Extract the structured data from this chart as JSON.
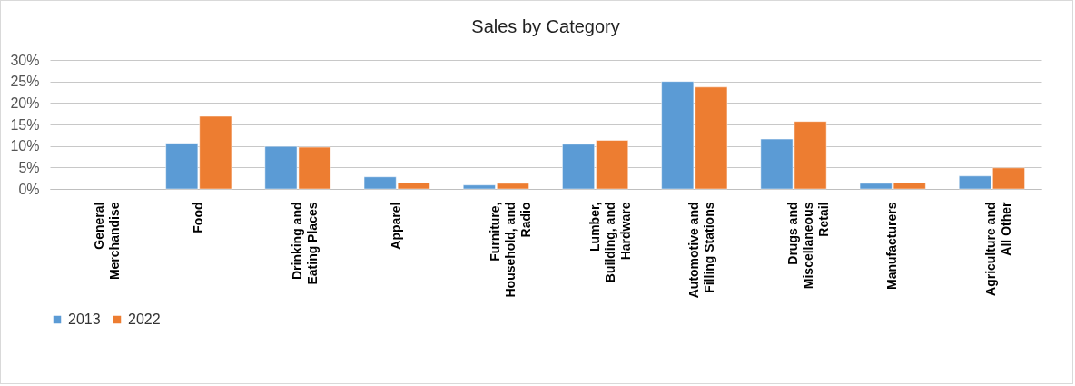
{
  "chart_data": {
    "type": "bar",
    "title": "Sales by Category",
    "categories": [
      "General Merchandise",
      "Food",
      "Drinking and Eating Places",
      "Apparel",
      "Furniture, Household, and Radio",
      "Lumber, Building, and Hardware",
      "Automotive and Filling Stations",
      "Drugs and Miscellaneous Retail",
      "Manufacturers",
      "Agriculture and All Other"
    ],
    "series": [
      {
        "name": "2013",
        "color": "#5b9bd5",
        "values": [
          null,
          10.6,
          9.9,
          2.8,
          0.9,
          10.4,
          25.0,
          11.6,
          1.3,
          3.0
        ]
      },
      {
        "name": "2022",
        "color": "#ed7d31",
        "values": [
          null,
          16.9,
          9.7,
          1.4,
          1.3,
          11.3,
          23.7,
          15.7,
          1.4,
          4.9
        ]
      }
    ],
    "ylim": [
      0,
      30
    ],
    "yticks": [
      {
        "value": 0,
        "label": "0%"
      },
      {
        "value": 5,
        "label": "5%"
      },
      {
        "value": 10,
        "label": "10%"
      },
      {
        "value": 15,
        "label": "15%"
      },
      {
        "value": 20,
        "label": "20%"
      },
      {
        "value": 25,
        "label": "25%"
      },
      {
        "value": 30,
        "label": "30%"
      }
    ],
    "grid": true,
    "legend": "bottom"
  }
}
